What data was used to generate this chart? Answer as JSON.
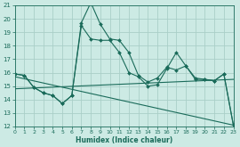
{
  "xlabel": "Humidex (Indice chaleur)",
  "xlim": [
    0,
    23
  ],
  "ylim": [
    12,
    21
  ],
  "xticks": [
    0,
    1,
    2,
    3,
    4,
    5,
    6,
    7,
    8,
    9,
    10,
    11,
    12,
    13,
    14,
    15,
    16,
    17,
    18,
    19,
    20,
    21,
    22,
    23
  ],
  "yticks": [
    12,
    13,
    14,
    15,
    16,
    17,
    18,
    19,
    20,
    21
  ],
  "bg_color": "#cceae4",
  "grid_color": "#aacfc8",
  "line_color": "#1a6b5a",
  "line1_x": [
    0,
    1,
    2,
    3,
    4,
    5,
    6,
    7,
    8,
    9,
    10,
    11,
    12,
    13,
    14,
    15,
    16,
    17,
    18,
    19,
    20,
    21,
    22,
    23
  ],
  "line1_y": [
    15.9,
    15.8,
    14.9,
    14.5,
    14.3,
    13.7,
    14.3,
    19.7,
    21.2,
    19.6,
    18.5,
    18.4,
    17.5,
    15.8,
    15.3,
    15.6,
    16.4,
    16.2,
    16.5,
    15.5,
    15.5,
    15.4,
    15.9,
    12.1
  ],
  "line2_x": [
    0,
    1,
    2,
    3,
    4,
    5,
    6,
    7,
    8,
    9,
    10,
    11,
    12,
    13,
    14,
    15,
    16,
    17,
    18,
    19,
    20,
    21,
    22,
    23
  ],
  "line2_y": [
    15.9,
    15.8,
    14.9,
    14.5,
    14.3,
    13.7,
    14.3,
    19.5,
    18.5,
    18.4,
    18.4,
    17.5,
    16.0,
    15.7,
    15.0,
    15.1,
    16.3,
    17.5,
    16.5,
    15.6,
    15.5,
    15.4,
    15.9,
    12.1
  ],
  "line3_x": [
    0,
    23
  ],
  "line3_y": [
    15.7,
    12.1
  ],
  "line4_x": [
    0,
    23
  ],
  "line4_y": [
    14.8,
    15.5
  ]
}
